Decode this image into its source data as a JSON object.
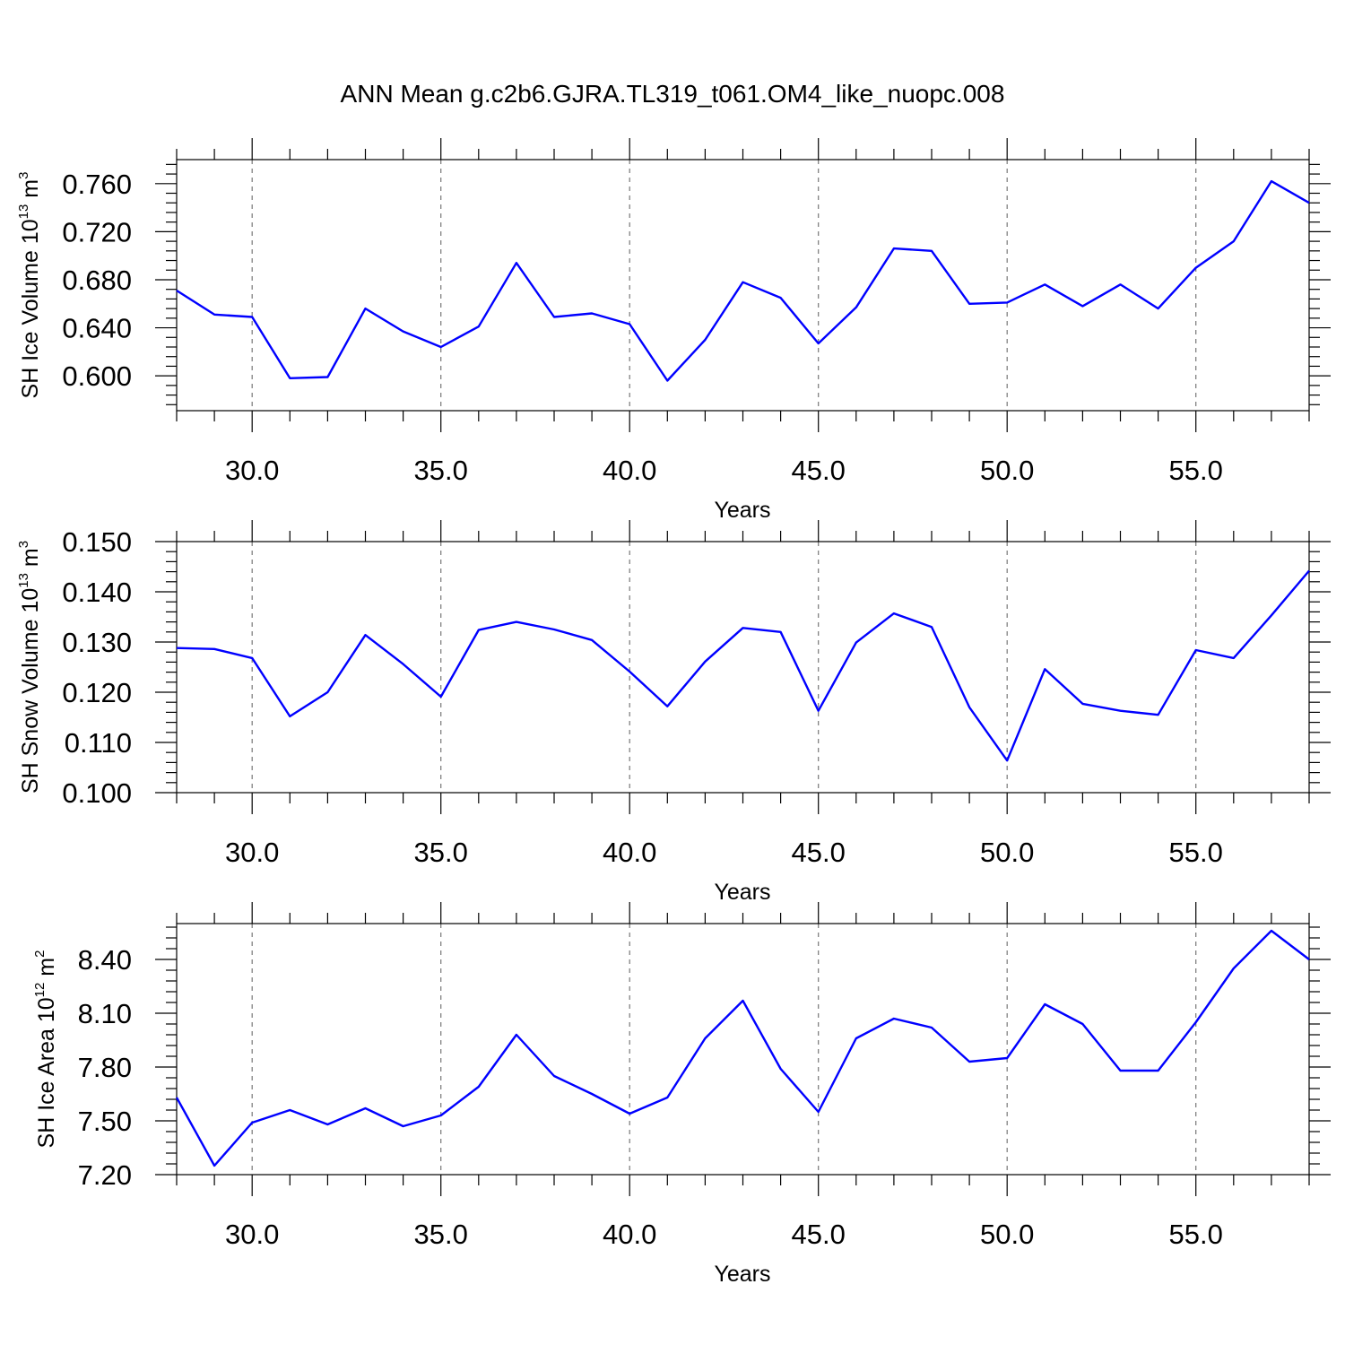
{
  "title": "ANN Mean g.c2b6.GJRA.TL319_t061.OM4_like_nuopc.008",
  "chart_data": [
    {
      "type": "line",
      "xlabel": "Years",
      "ylabel": {
        "text": "SH Ice Volume 10",
        "sup": "13",
        "unit": " m",
        "unit_sup": "3"
      },
      "xlim": [
        28,
        58
      ],
      "ylim": [
        0.571,
        0.78
      ],
      "xticks": [
        30,
        35,
        40,
        45,
        50,
        55
      ],
      "xtick_labels": [
        "30.0",
        "35.0",
        "40.0",
        "45.0",
        "50.0",
        "55.0"
      ],
      "yticks": [
        0.6,
        0.64,
        0.68,
        0.72,
        0.76
      ],
      "ytick_labels": [
        "0.600",
        "0.640",
        "0.680",
        "0.720",
        "0.760"
      ],
      "yminor_step": 0.008,
      "x": [
        28,
        29,
        30,
        31,
        32,
        33,
        34,
        35,
        36,
        37,
        38,
        39,
        40,
        41,
        42,
        43,
        44,
        45,
        46,
        47,
        48,
        49,
        50,
        51,
        52,
        53,
        54,
        55,
        56,
        57,
        58
      ],
      "series": [
        {
          "color": "#0000ff",
          "values": [
            0.671,
            0.651,
            0.649,
            0.598,
            0.599,
            0.656,
            0.637,
            0.624,
            0.641,
            0.694,
            0.649,
            0.652,
            0.643,
            0.596,
            0.63,
            0.678,
            0.665,
            0.627,
            0.657,
            0.706,
            0.704,
            0.66,
            0.661,
            0.676,
            0.658,
            0.676,
            0.656,
            0.69,
            0.712,
            0.762,
            0.744
          ]
        }
      ]
    },
    {
      "type": "line",
      "xlabel": "Years",
      "ylabel": {
        "text": "SH Snow Volume 10",
        "sup": "13",
        "unit": " m",
        "unit_sup": "3"
      },
      "xlim": [
        28,
        58
      ],
      "ylim": [
        0.1,
        0.15
      ],
      "xticks": [
        30,
        35,
        40,
        45,
        50,
        55
      ],
      "xtick_labels": [
        "30.0",
        "35.0",
        "40.0",
        "45.0",
        "50.0",
        "55.0"
      ],
      "yticks": [
        0.1,
        0.11,
        0.12,
        0.13,
        0.14,
        0.15
      ],
      "ytick_labels": [
        "0.100",
        "0.110",
        "0.120",
        "0.130",
        "0.140",
        "0.150"
      ],
      "yminor_step": 0.002,
      "x": [
        28,
        29,
        30,
        31,
        32,
        33,
        34,
        35,
        36,
        37,
        38,
        39,
        40,
        41,
        42,
        43,
        44,
        45,
        46,
        47,
        48,
        49,
        50,
        51,
        52,
        53,
        54,
        55,
        56,
        57,
        58
      ],
      "series": [
        {
          "color": "#0000ff",
          "values": [
            0.1288,
            0.1286,
            0.1268,
            0.1152,
            0.12,
            0.1314,
            0.1256,
            0.1191,
            0.1324,
            0.134,
            0.1325,
            0.1304,
            0.1241,
            0.1172,
            0.1261,
            0.1328,
            0.132,
            0.1163,
            0.1299,
            0.1357,
            0.133,
            0.117,
            0.1064,
            0.1246,
            0.1177,
            0.1163,
            0.1155,
            0.1284,
            0.1268,
            0.1353,
            0.1442
          ]
        }
      ]
    },
    {
      "type": "line",
      "xlabel": "Years",
      "ylabel": {
        "text": "SH Ice Area 10",
        "sup": "12",
        "unit": " m",
        "unit_sup": "2"
      },
      "xlim": [
        28,
        58
      ],
      "ylim": [
        7.2,
        8.6
      ],
      "xticks": [
        30,
        35,
        40,
        45,
        50,
        55
      ],
      "xtick_labels": [
        "30.0",
        "35.0",
        "40.0",
        "45.0",
        "50.0",
        "55.0"
      ],
      "yticks": [
        7.2,
        7.5,
        7.8,
        8.1,
        8.4
      ],
      "ytick_labels": [
        "7.20",
        "7.50",
        "7.80",
        "8.10",
        "8.40"
      ],
      "yminor_step": 0.06,
      "x": [
        28,
        29,
        30,
        31,
        32,
        33,
        34,
        35,
        36,
        37,
        38,
        39,
        40,
        41,
        42,
        43,
        44,
        45,
        46,
        47,
        48,
        49,
        50,
        51,
        52,
        53,
        54,
        55,
        56,
        57,
        58
      ],
      "series": [
        {
          "color": "#0000ff",
          "values": [
            7.63,
            7.25,
            7.49,
            7.56,
            7.48,
            7.57,
            7.47,
            7.53,
            7.69,
            7.98,
            7.75,
            7.65,
            7.54,
            7.63,
            7.96,
            8.17,
            7.79,
            7.55,
            7.96,
            8.07,
            8.02,
            7.83,
            7.85,
            8.15,
            8.04,
            7.78,
            7.78,
            8.05,
            8.35,
            8.56,
            8.4
          ]
        }
      ]
    }
  ]
}
